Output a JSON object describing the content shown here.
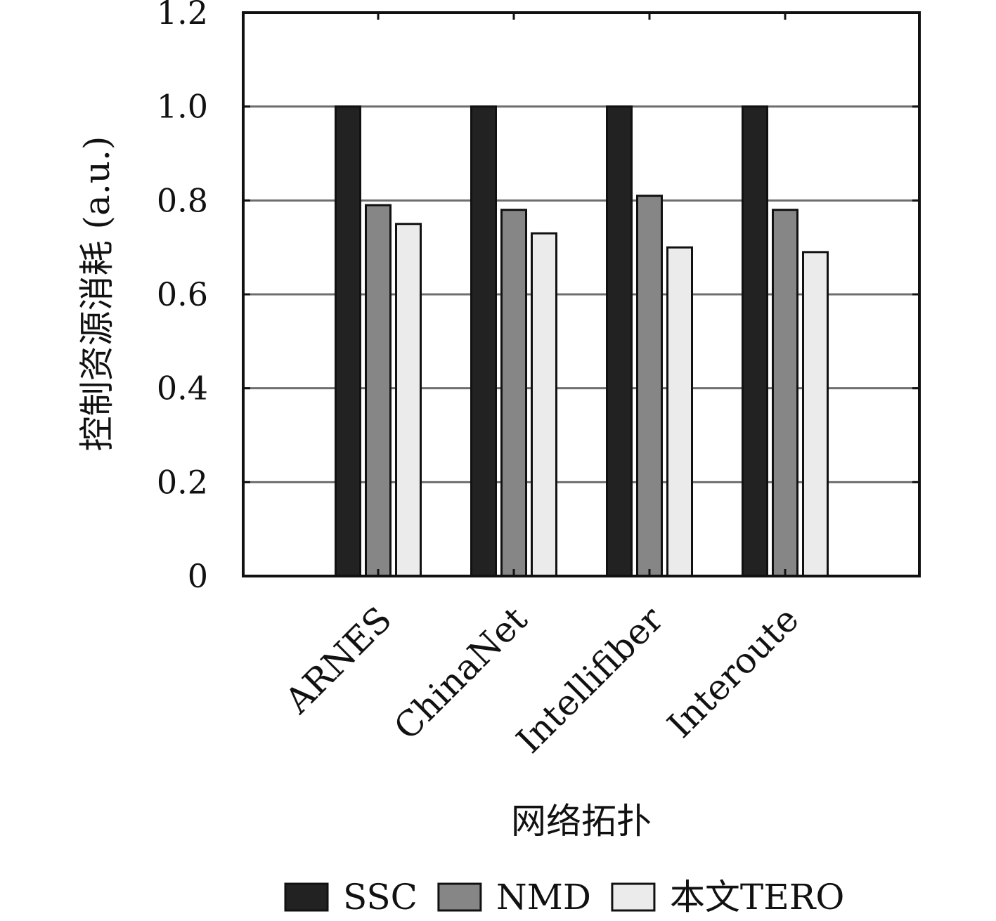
{
  "chart_data": {
    "type": "bar",
    "title": "",
    "xlabel": "网络拓扑",
    "ylabel": "控制资源消耗 (a.u.)",
    "ylim": [
      0,
      1.2
    ],
    "yticks": [
      0,
      0.2,
      0.4,
      0.6,
      0.8,
      1.0,
      1.2
    ],
    "ytick_labels": [
      "0",
      "0.2",
      "0.4",
      "0.6",
      "0.8",
      "1.0",
      "1.2"
    ],
    "grid": true,
    "legend_position": "bottom",
    "categories": [
      "ARNES",
      "ChinaNet",
      "Intellifiber",
      "Interoute"
    ],
    "series": [
      {
        "name": "SSC",
        "color": "#222222",
        "values": [
          1.0,
          1.0,
          1.0,
          1.0
        ]
      },
      {
        "name": "NMD",
        "color": "#868686",
        "values": [
          0.79,
          0.78,
          0.81,
          0.78
        ]
      },
      {
        "name": "本文TERO",
        "color": "#ebebeb",
        "values": [
          0.75,
          0.73,
          0.7,
          0.69
        ]
      }
    ]
  }
}
